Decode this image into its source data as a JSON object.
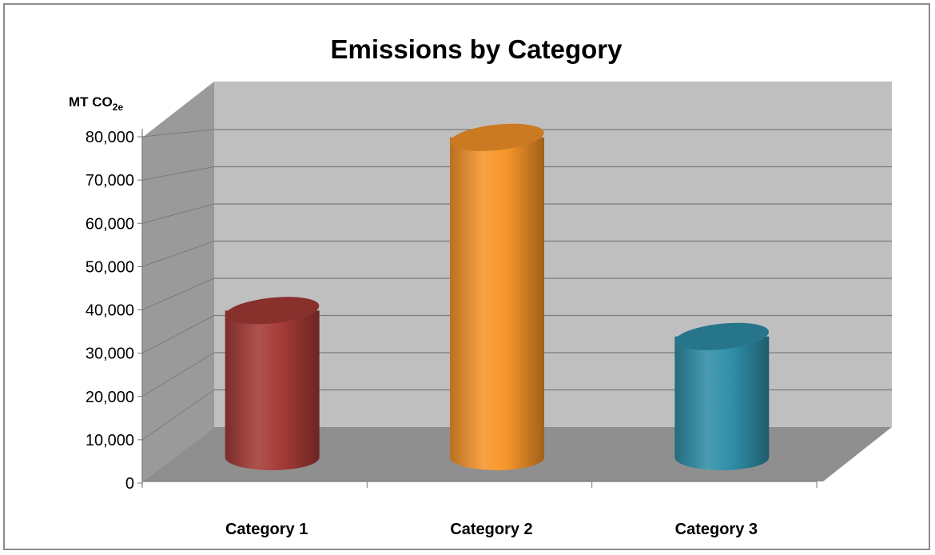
{
  "chart_data": {
    "type": "bar",
    "title": "Emissions by Category",
    "ylabel": "MT CO2e",
    "ylabel_main": "MT CO",
    "ylabel_sub": "2e",
    "categories": [
      "Category 1",
      "Category 2",
      "Category 3"
    ],
    "values": [
      38000,
      78000,
      32000
    ],
    "ylim": [
      0,
      80000
    ],
    "yticks": [
      0,
      10000,
      20000,
      30000,
      40000,
      50000,
      60000,
      70000,
      80000
    ],
    "ytick_labels": [
      "0",
      "10,000",
      "20,000",
      "30,000",
      "40,000",
      "50,000",
      "60,000",
      "70,000",
      "80,000"
    ],
    "grid": true,
    "style": "3d-cylinder",
    "colors": [
      "#a53a36",
      "#f7952a",
      "#2f8fa8"
    ],
    "wall_color": "#bfbfbf",
    "floor_color": "#8f8f8f",
    "side_wall_color": "#9a9a9a"
  }
}
